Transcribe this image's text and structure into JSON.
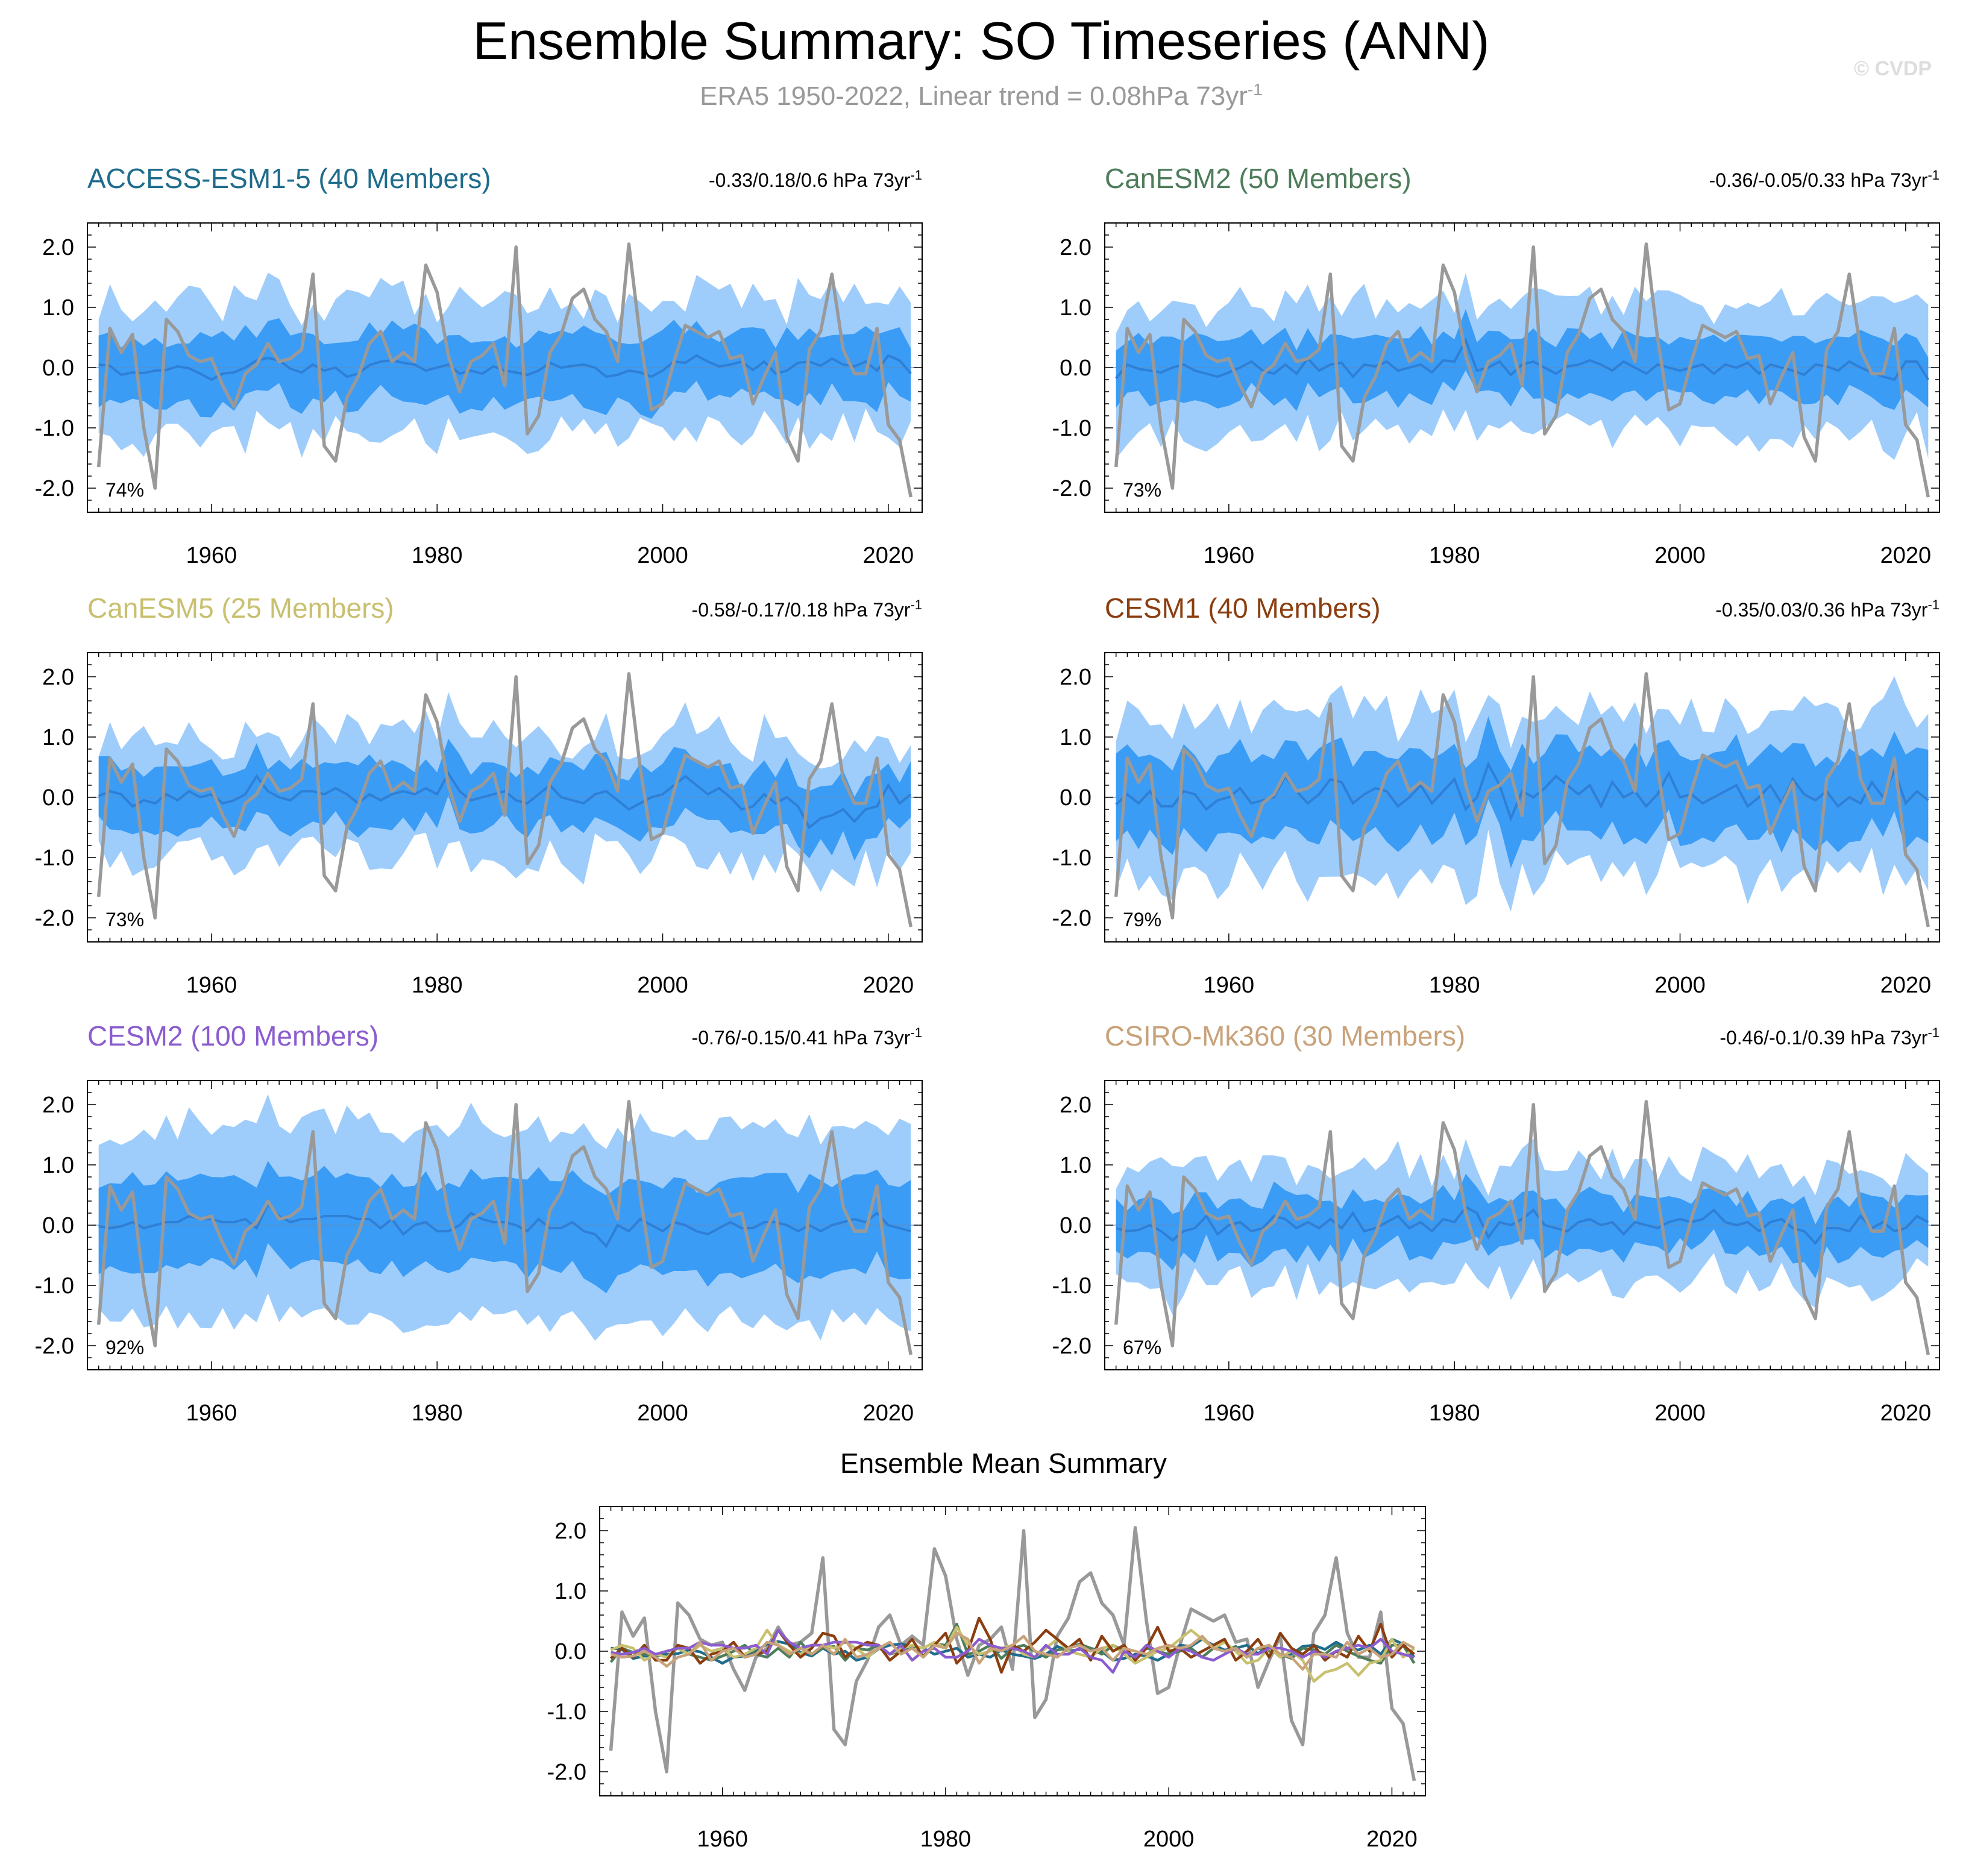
{
  "figure": {
    "title": "Ensemble Summary: SO Timeseries (ANN)",
    "subtitle_main": "ERA5 1950-2022, Linear trend = 0.08hPa 73yr",
    "subtitle_sup": "-1",
    "copyright": "© CVDP",
    "trend_sup": "-1"
  },
  "chart_data": {
    "type": "line",
    "x_start": 1950,
    "x_end": 2022,
    "xlim": [
      1949,
      2023
    ],
    "ylim": [
      -2.4,
      2.4
    ],
    "y_ticks": [
      2.0,
      1.0,
      0.0,
      -1.0,
      -2.0
    ],
    "y_tick_labels": [
      "2.0",
      "1.0",
      "0.0",
      "-1.0",
      "-2.0"
    ],
    "x_ticks": [
      1960,
      1980,
      2000,
      2020
    ],
    "x_tick_labels": [
      "1960",
      "1980",
      "2000",
      "2020"
    ],
    "observation": {
      "name": "ERA5",
      "color": "#999999",
      "values": [
        -1.65,
        0.65,
        0.25,
        0.55,
        -1.0,
        -2.0,
        0.8,
        0.6,
        0.2,
        0.1,
        0.15,
        -0.3,
        -0.65,
        -0.1,
        0.05,
        0.4,
        0.1,
        0.15,
        0.3,
        1.55,
        -1.3,
        -1.55,
        -0.5,
        -0.15,
        0.4,
        0.6,
        0.1,
        0.25,
        0.1,
        1.7,
        1.25,
        0.2,
        -0.4,
        0.1,
        0.2,
        0.4,
        -0.3,
        2.0,
        -1.1,
        -0.8,
        0.25,
        0.55,
        1.15,
        1.3,
        0.8,
        0.6,
        0.1,
        2.05,
        0.5,
        -0.7,
        -0.6,
        0.1,
        0.7,
        0.6,
        0.5,
        0.6,
        0.15,
        0.2,
        -0.6,
        -0.15,
        0.25,
        -1.15,
        -1.55,
        0.3,
        0.6,
        1.55,
        0.3,
        -0.1,
        -0.1,
        0.65,
        -0.95,
        -1.2,
        -2.15
      ]
    },
    "panels": [
      {
        "name": "ACCESS-ESM1-5",
        "members": 40,
        "title": "ACCESS-ESM1-5 (40 Members)",
        "color": "#1f6c8c",
        "trend": "-0.33/0.18/0.6 hPa 73yr",
        "percent": "74%",
        "dark_half": 0.55,
        "light_half": 1.1,
        "noise_amp": 0.35,
        "mean_amp": 0.15,
        "seed": 11,
        "mean": [
          0.05,
          0.03,
          -0.12,
          -0.08,
          -0.09,
          -0.05,
          -0.04,
          0.02,
          -0.01,
          -0.1,
          -0.2,
          -0.1,
          -0.08,
          0.0,
          0.12,
          0.16,
          0.12,
          -0.02,
          -0.08,
          0.05,
          -0.05,
          0.0,
          -0.15,
          -0.1,
          0.04,
          0.1,
          0.12,
          0.08,
          0.05,
          -0.05,
          0.0,
          0.05,
          -0.1,
          -0.05,
          -0.1,
          0.02,
          -0.05,
          -0.08,
          -0.12,
          -0.05,
          0.08,
          0.0,
          0.03,
          0.05,
          0.0,
          -0.15,
          -0.12,
          -0.05,
          -0.08,
          -0.15,
          -0.05,
          0.1,
          0.08,
          0.2,
          0.1,
          0.02,
          0.05,
          0.1,
          -0.04,
          0.1,
          -0.1,
          -0.05,
          0.08,
          0.1,
          0.03,
          0.15,
          0.05,
          0.02,
          0.1,
          -0.05,
          0.2,
          0.12,
          -0.1
        ]
      },
      {
        "name": "CanESM2",
        "members": 50,
        "title": "CanESM2 (50 Members)",
        "color": "#4e7d5b",
        "trend": "-0.36/-0.05/0.33 hPa 73yr",
        "percent": "73%",
        "dark_half": 0.5,
        "light_half": 1.05,
        "noise_amp": 0.3,
        "mean_amp": 0.15,
        "seed": 23,
        "mean": [
          -0.18,
          0.05,
          -0.02,
          -0.05,
          -0.08,
          0.0,
          0.05,
          -0.05,
          -0.1,
          -0.15,
          -0.08,
          0.0,
          0.1,
          -0.05,
          -0.1,
          0.05,
          -0.1,
          0.15,
          -0.05,
          0.05,
          0.08,
          -0.15,
          0.05,
          0.02,
          0.1,
          -0.05,
          0.0,
          0.05,
          -0.08,
          0.12,
          0.1,
          0.45,
          -0.05,
          0.0,
          0.1,
          -0.12,
          0.05,
          0.1,
          0.0,
          -0.1,
          0.02,
          0.05,
          0.12,
          0.05,
          -0.05,
          0.1,
          0.0,
          -0.1,
          0.05,
          0.0,
          -0.05,
          0.0,
          0.05,
          -0.1,
          0.05,
          0.0,
          0.08,
          -0.1,
          0.05,
          0.0,
          -0.05,
          -0.12,
          0.05,
          0.02,
          -0.05,
          0.1,
          0.0,
          -0.08,
          -0.15,
          -0.2,
          0.1,
          0.1,
          -0.2
        ]
      },
      {
        "name": "CanESM5",
        "members": 25,
        "title": "CanESM5 (25 Members)",
        "color": "#c8c06e",
        "trend": "-0.58/-0.17/0.18 hPa 73yr",
        "percent": "73%",
        "dark_half": 0.5,
        "light_half": 1.0,
        "noise_amp": 0.35,
        "mean_amp": 0.18,
        "seed": 37,
        "mean": [
          0.02,
          0.1,
          0.05,
          -0.15,
          -0.05,
          -0.1,
          0.05,
          -0.05,
          0.1,
          0.0,
          0.05,
          -0.1,
          -0.05,
          0.05,
          0.35,
          0.1,
          0.0,
          -0.05,
          0.1,
          0.1,
          0.05,
          0.15,
          0.05,
          -0.1,
          0.05,
          -0.05,
          0.05,
          0.1,
          0.05,
          0.15,
          0.05,
          0.4,
          0.1,
          -0.05,
          0.0,
          0.05,
          0.1,
          -0.05,
          -0.1,
          0.05,
          0.2,
          0.0,
          -0.05,
          -0.1,
          0.05,
          0.1,
          -0.05,
          -0.2,
          -0.1,
          0.0,
          0.05,
          0.2,
          0.35,
          0.2,
          0.05,
          0.15,
          0.0,
          -0.2,
          -0.15,
          0.05,
          -0.1,
          0.0,
          -0.15,
          -0.5,
          -0.35,
          -0.3,
          -0.2,
          -0.4,
          -0.2,
          -0.15,
          0.2,
          -0.1,
          0.05
        ]
      },
      {
        "name": "CESM1",
        "members": 40,
        "title": "CESM1 (40 Members)",
        "color": "#8b3e0f",
        "trend": "-0.35/0.03/0.36 hPa 73yr",
        "percent": "79%",
        "dark_half": 0.7,
        "light_half": 1.35,
        "noise_amp": 0.3,
        "mean_amp": 0.2,
        "seed": 41,
        "mean": [
          -0.12,
          0.05,
          -0.1,
          0.1,
          -0.15,
          -0.15,
          0.1,
          0.05,
          -0.2,
          -0.05,
          0.0,
          0.15,
          -0.1,
          -0.05,
          0.0,
          0.35,
          0.1,
          -0.1,
          0.05,
          0.3,
          0.25,
          -0.1,
          0.05,
          0.15,
          0.1,
          -0.15,
          0.0,
          0.2,
          -0.1,
          0.1,
          0.3,
          -0.2,
          0.0,
          0.55,
          0.2,
          -0.35,
          0.1,
          0.0,
          0.15,
          0.35,
          0.2,
          0.05,
          0.2,
          -0.15,
          0.25,
          0.0,
          0.1,
          -0.15,
          0.05,
          0.4,
          0.0,
          0.05,
          -0.1,
          0.0,
          0.1,
          0.2,
          -0.15,
          0.0,
          0.2,
          -0.1,
          0.3,
          0.05,
          -0.05,
          0.1,
          -0.15,
          0.0,
          -0.1,
          0.25,
          0.0,
          0.45,
          -0.1,
          0.1,
          -0.05
        ]
      },
      {
        "name": "CESM2",
        "members": 100,
        "title": "CESM2 (100 Members)",
        "color": "#8b5ccf",
        "trend": "-0.76/-0.15/0.41 hPa 73yr",
        "percent": "92%",
        "dark_half": 0.75,
        "light_half": 1.6,
        "noise_amp": 0.25,
        "mean_amp": 0.1,
        "seed": 53,
        "mean": [
          -0.02,
          -0.05,
          -0.02,
          0.05,
          -0.05,
          0.0,
          0.05,
          0.05,
          0.15,
          0.1,
          0.1,
          0.05,
          0.05,
          0.1,
          -0.05,
          0.35,
          0.15,
          0.05,
          0.1,
          0.1,
          0.15,
          0.15,
          0.15,
          0.1,
          0.1,
          -0.05,
          0.1,
          -0.15,
          0.0,
          0.05,
          -0.1,
          -0.1,
          0.0,
          0.2,
          0.1,
          0.05,
          0.05,
          0.0,
          -0.1,
          0.1,
          -0.05,
          -0.05,
          0.05,
          -0.1,
          -0.15,
          -0.35,
          0.0,
          -0.1,
          0.1,
          0.0,
          -0.1,
          0.05,
          0.0,
          -0.1,
          -0.15,
          -0.05,
          0.05,
          -0.05,
          -0.05,
          0.05,
          0.05,
          0.0,
          -0.1,
          0.0,
          -0.1,
          0.0,
          0.05,
          0.1,
          0.05,
          0.2,
          0.0,
          -0.05,
          -0.1
        ]
      },
      {
        "name": "CSIRO-Mk360",
        "members": 30,
        "title": "CSIRO-Mk360 (30 Members)",
        "color": "#c8a27a",
        "trend": "-0.46/-0.1/0.39 hPa 73yr",
        "percent": "67%",
        "dark_half": 0.45,
        "light_half": 0.95,
        "noise_amp": 0.3,
        "mean_amp": 0.18,
        "seed": 67,
        "mean": [
          -0.05,
          -0.1,
          -0.08,
          0.0,
          -0.1,
          -0.25,
          -0.1,
          -0.05,
          0.15,
          -0.15,
          0.0,
          0.05,
          -0.1,
          -0.05,
          0.15,
          0.1,
          -0.05,
          0.05,
          -0.05,
          0.1,
          -0.05,
          0.2,
          -0.1,
          -0.05,
          0.05,
          0.15,
          -0.05,
          0.05,
          -0.1,
          0.1,
          0.05,
          0.3,
          0.2,
          -0.2,
          0.05,
          0.0,
          0.1,
          0.25,
          0.0,
          -0.05,
          -0.1,
          0.05,
          0.1,
          0.0,
          0.05,
          -0.15,
          0.05,
          0.0,
          -0.05,
          0.05,
          0.1,
          0.05,
          0.1,
          0.25,
          0.05,
          0.0,
          0.05,
          -0.1,
          0.05,
          0.1,
          -0.05,
          -0.1,
          -0.3,
          -0.05,
          -0.05,
          -0.1,
          0.15,
          -0.05,
          0.05,
          -0.1,
          -0.05,
          0.15,
          0.05
        ]
      }
    ],
    "summary": {
      "title": "Ensemble Mean Summary",
      "ylim": [
        -2.4,
        2.4
      ]
    }
  }
}
